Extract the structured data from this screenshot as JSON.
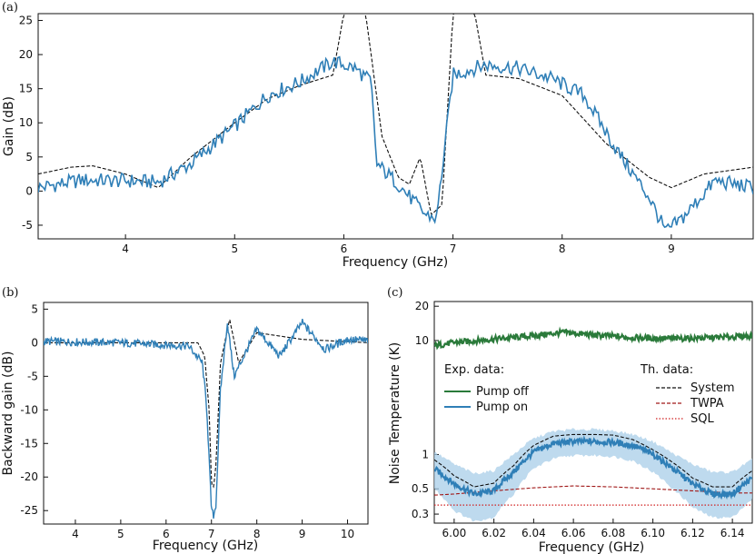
{
  "colors": {
    "pump_on": "#2f7fb7",
    "pump_off": "#2a7a3a",
    "system": "#111111",
    "twpa": "#a01818",
    "sql": "#d02020",
    "band": "#a8cde8"
  },
  "chart_data": [
    {
      "panel": "(a)",
      "type": "line",
      "xlabel": "Frequency (GHz)",
      "ylabel": "Gain (dB)",
      "xlim": [
        3.2,
        9.75
      ],
      "ylim": [
        -7,
        26
      ],
      "xticks": [
        "4",
        "5",
        "6",
        "7",
        "8",
        "9"
      ],
      "yticks": [
        "-5",
        "0",
        "5",
        "10",
        "15",
        "20",
        "25"
      ],
      "series": [
        {
          "style": "solid",
          "color": "#2f7fb7",
          "x": [
            3.2,
            3.6,
            4.0,
            4.3,
            4.6,
            5.0,
            5.3,
            5.6,
            5.9,
            6.1,
            6.25,
            6.3,
            6.5,
            6.75,
            6.85,
            7.0,
            7.3,
            7.6,
            7.9,
            8.2,
            8.5,
            8.8,
            8.95,
            9.1,
            9.4,
            9.75
          ],
          "y": [
            0.5,
            1.6,
            1.5,
            1.3,
            4.0,
            9.5,
            14.0,
            16.0,
            19.0,
            18.0,
            16.0,
            4.0,
            1.0,
            -3.5,
            -4.0,
            17.0,
            18.5,
            18.0,
            16.5,
            14.0,
            6.0,
            -1.0,
            -6.0,
            -4.0,
            1.5,
            0.5
          ]
        },
        {
          "style": "dashed",
          "color": "#111111",
          "x": [
            3.2,
            3.5,
            3.7,
            4.0,
            4.3,
            4.6,
            5.0,
            5.3,
            5.6,
            5.9,
            6.0,
            6.1,
            6.2,
            6.35,
            6.5,
            6.6,
            6.7,
            6.8,
            6.9,
            7.0,
            7.1,
            7.2,
            7.3,
            7.6,
            8.0,
            8.4,
            8.8,
            9.0,
            9.3,
            9.75
          ],
          "y": [
            2.5,
            3.5,
            3.7,
            2.5,
            0.5,
            5.0,
            10.0,
            13.5,
            15.5,
            17.0,
            26,
            26,
            26,
            8.0,
            2.0,
            1.0,
            5.0,
            -3.5,
            -2.0,
            26,
            26,
            26,
            17.0,
            16.5,
            14.0,
            7.0,
            2.0,
            0.5,
            2.5,
            3.5
          ]
        }
      ]
    },
    {
      "panel": "(b)",
      "type": "line",
      "xlabel": "Frequency (GHz)",
      "ylabel": "Backward gain (dB)",
      "xlim": [
        3.3,
        10.45
      ],
      "ylim": [
        -27,
        6
      ],
      "xticks": [
        "4",
        "5",
        "6",
        "7",
        "8",
        "9",
        "10"
      ],
      "yticks": [
        "-25",
        "-20",
        "-15",
        "-10",
        "-5",
        "0",
        "5"
      ],
      "series": [
        {
          "style": "solid",
          "color": "#2f7fb7",
          "x": [
            3.3,
            5.0,
            6.5,
            6.8,
            6.9,
            7.0,
            7.05,
            7.1,
            7.2,
            7.35,
            7.5,
            8.0,
            8.5,
            9.0,
            9.5,
            10.0,
            10.45
          ],
          "y": [
            0.2,
            0.0,
            -0.5,
            -3.0,
            -10.0,
            -25.0,
            -25.8,
            -24.0,
            -7.0,
            3.0,
            -5.0,
            2.0,
            -2.0,
            3.0,
            -1.0,
            0.5,
            0.3
          ]
        },
        {
          "style": "dashed",
          "color": "#111111",
          "x": [
            3.3,
            6.7,
            6.85,
            6.95,
            7.0,
            7.05,
            7.1,
            7.2,
            7.4,
            7.6,
            8.0,
            9.0,
            10.45
          ],
          "y": [
            0.0,
            0.0,
            -2.0,
            -10.0,
            -21.0,
            -21.5,
            -18.0,
            -3.0,
            3.5,
            -3.0,
            1.5,
            0.5,
            0.0
          ]
        }
      ]
    },
    {
      "panel": "(c)",
      "type": "line",
      "yscale": "log",
      "xlabel": "Frequency (GHz)",
      "ylabel": "Noise Temperature (K)",
      "xlim": [
        5.99,
        6.15
      ],
      "ylim": [
        0.25,
        22
      ],
      "xticks": [
        "6.00",
        "6.02",
        "6.04",
        "6.06",
        "6.08",
        "6.10",
        "6.12",
        "6.14"
      ],
      "yticks": [
        "0.3",
        "0.5",
        "1",
        "10",
        "20"
      ],
      "legend_exp": {
        "title": "Exp. data:",
        "entries": [
          "Pump off",
          "Pump on"
        ]
      },
      "legend_th": {
        "title": "Th. data:",
        "entries": [
          "System",
          "TWPA",
          "SQL"
        ]
      },
      "series": [
        {
          "name": "Pump off",
          "style": "solid",
          "color": "#2a7a3a",
          "x": [
            5.99,
            6.0,
            6.02,
            6.04,
            6.055,
            6.07,
            6.09,
            6.11,
            6.13,
            6.15
          ],
          "y": [
            9.0,
            9.6,
            10.3,
            11.0,
            11.8,
            11.2,
            10.6,
            10.4,
            10.6,
            11.0
          ]
        },
        {
          "name": "Pump on",
          "style": "solid",
          "color": "#2f7fb7",
          "x": [
            5.99,
            6.0,
            6.01,
            6.02,
            6.03,
            6.04,
            6.05,
            6.06,
            6.07,
            6.08,
            6.09,
            6.1,
            6.11,
            6.12,
            6.13,
            6.14,
            6.15
          ],
          "y": [
            0.75,
            0.55,
            0.45,
            0.48,
            0.7,
            1.05,
            1.25,
            1.3,
            1.3,
            1.28,
            1.2,
            1.0,
            0.75,
            0.55,
            0.45,
            0.45,
            0.62
          ]
        },
        {
          "name": "System",
          "style": "dashed",
          "color": "#111111",
          "x": [
            5.99,
            6.0,
            6.01,
            6.02,
            6.03,
            6.04,
            6.05,
            6.06,
            6.07,
            6.08,
            6.09,
            6.1,
            6.11,
            6.12,
            6.13,
            6.14,
            6.15
          ],
          "y": [
            0.9,
            0.65,
            0.52,
            0.56,
            0.8,
            1.2,
            1.45,
            1.5,
            1.5,
            1.48,
            1.35,
            1.1,
            0.85,
            0.62,
            0.52,
            0.52,
            0.72
          ]
        },
        {
          "name": "TWPA",
          "style": "dashed",
          "color": "#a01818",
          "x": [
            5.99,
            6.0,
            6.02,
            6.04,
            6.06,
            6.08,
            6.1,
            6.12,
            6.14,
            6.15
          ],
          "y": [
            0.44,
            0.45,
            0.48,
            0.51,
            0.53,
            0.52,
            0.5,
            0.48,
            0.46,
            0.46
          ]
        },
        {
          "name": "SQL",
          "style": "dotted",
          "color": "#d02020",
          "x": [
            5.99,
            6.15
          ],
          "y": [
            0.36,
            0.36
          ]
        }
      ],
      "band": {
        "x": [
          5.99,
          6.0,
          6.01,
          6.02,
          6.03,
          6.04,
          6.05,
          6.06,
          6.07,
          6.08,
          6.09,
          6.1,
          6.11,
          6.12,
          6.13,
          6.14,
          6.15
        ],
        "lower": [
          0.5,
          0.32,
          0.26,
          0.28,
          0.45,
          0.75,
          0.92,
          0.98,
          0.98,
          0.96,
          0.88,
          0.7,
          0.5,
          0.34,
          0.28,
          0.28,
          0.4
        ],
        "upper": [
          1.05,
          0.82,
          0.68,
          0.72,
          1.0,
          1.38,
          1.6,
          1.66,
          1.66,
          1.62,
          1.5,
          1.3,
          1.02,
          0.82,
          0.7,
          0.7,
          0.9
        ]
      }
    }
  ]
}
